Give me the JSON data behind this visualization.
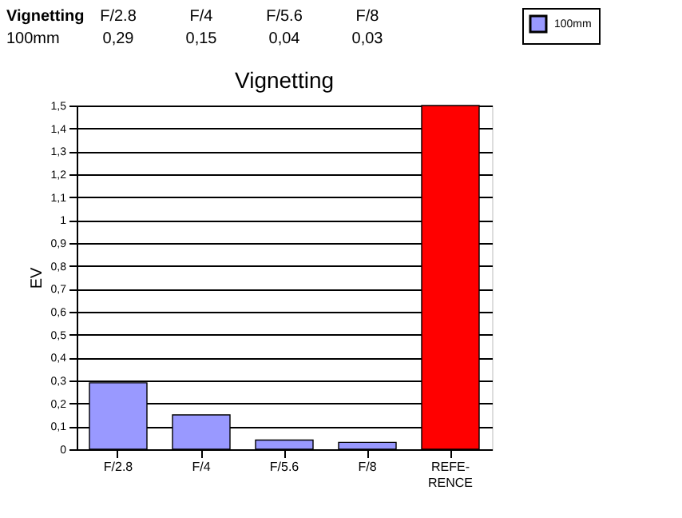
{
  "chart_data": {
    "type": "bar",
    "title": "Vignetting",
    "ylabel": "EV",
    "categories": [
      "F/2.8",
      "F/4",
      "F/5.6",
      "F/8",
      "REFE-RENCE"
    ],
    "series": [
      {
        "name": "100mm",
        "color": "#9999ff",
        "values": [
          0.29,
          0.15,
          0.04,
          0.03,
          null
        ],
        "value_labels": [
          "0,29",
          "0,15",
          "0,04",
          "0,03",
          null
        ]
      },
      {
        "color": "#ff0000",
        "values": [
          null,
          null,
          null,
          null,
          1.5
        ]
      }
    ],
    "ylim": [
      0,
      1.5
    ],
    "yticks": [
      0,
      {
        "value": 0.1,
        "label": "0,1"
      },
      {
        "value": 0.2,
        "label": "0,2"
      },
      {
        "value": 0.3,
        "label": "0,3"
      },
      {
        "value": 0.4,
        "label": "0,4"
      },
      {
        "value": 0.5,
        "label": "0,5"
      },
      {
        "value": 0.6,
        "label": "0,6"
      },
      {
        "value": 0.7,
        "label": "0,7"
      },
      {
        "value": 0.8,
        "label": "0,8"
      },
      {
        "value": 0.9,
        "label": "0,9"
      },
      1,
      {
        "value": 1.1,
        "label": "1,1"
      },
      {
        "value": 1.2,
        "label": "1,2"
      },
      {
        "value": 1.3,
        "label": "1,3"
      },
      {
        "value": 1.4,
        "label": "1,4"
      },
      {
        "value": 1.5,
        "label": "1,5"
      }
    ],
    "grid": "y",
    "legend": "right"
  }
}
